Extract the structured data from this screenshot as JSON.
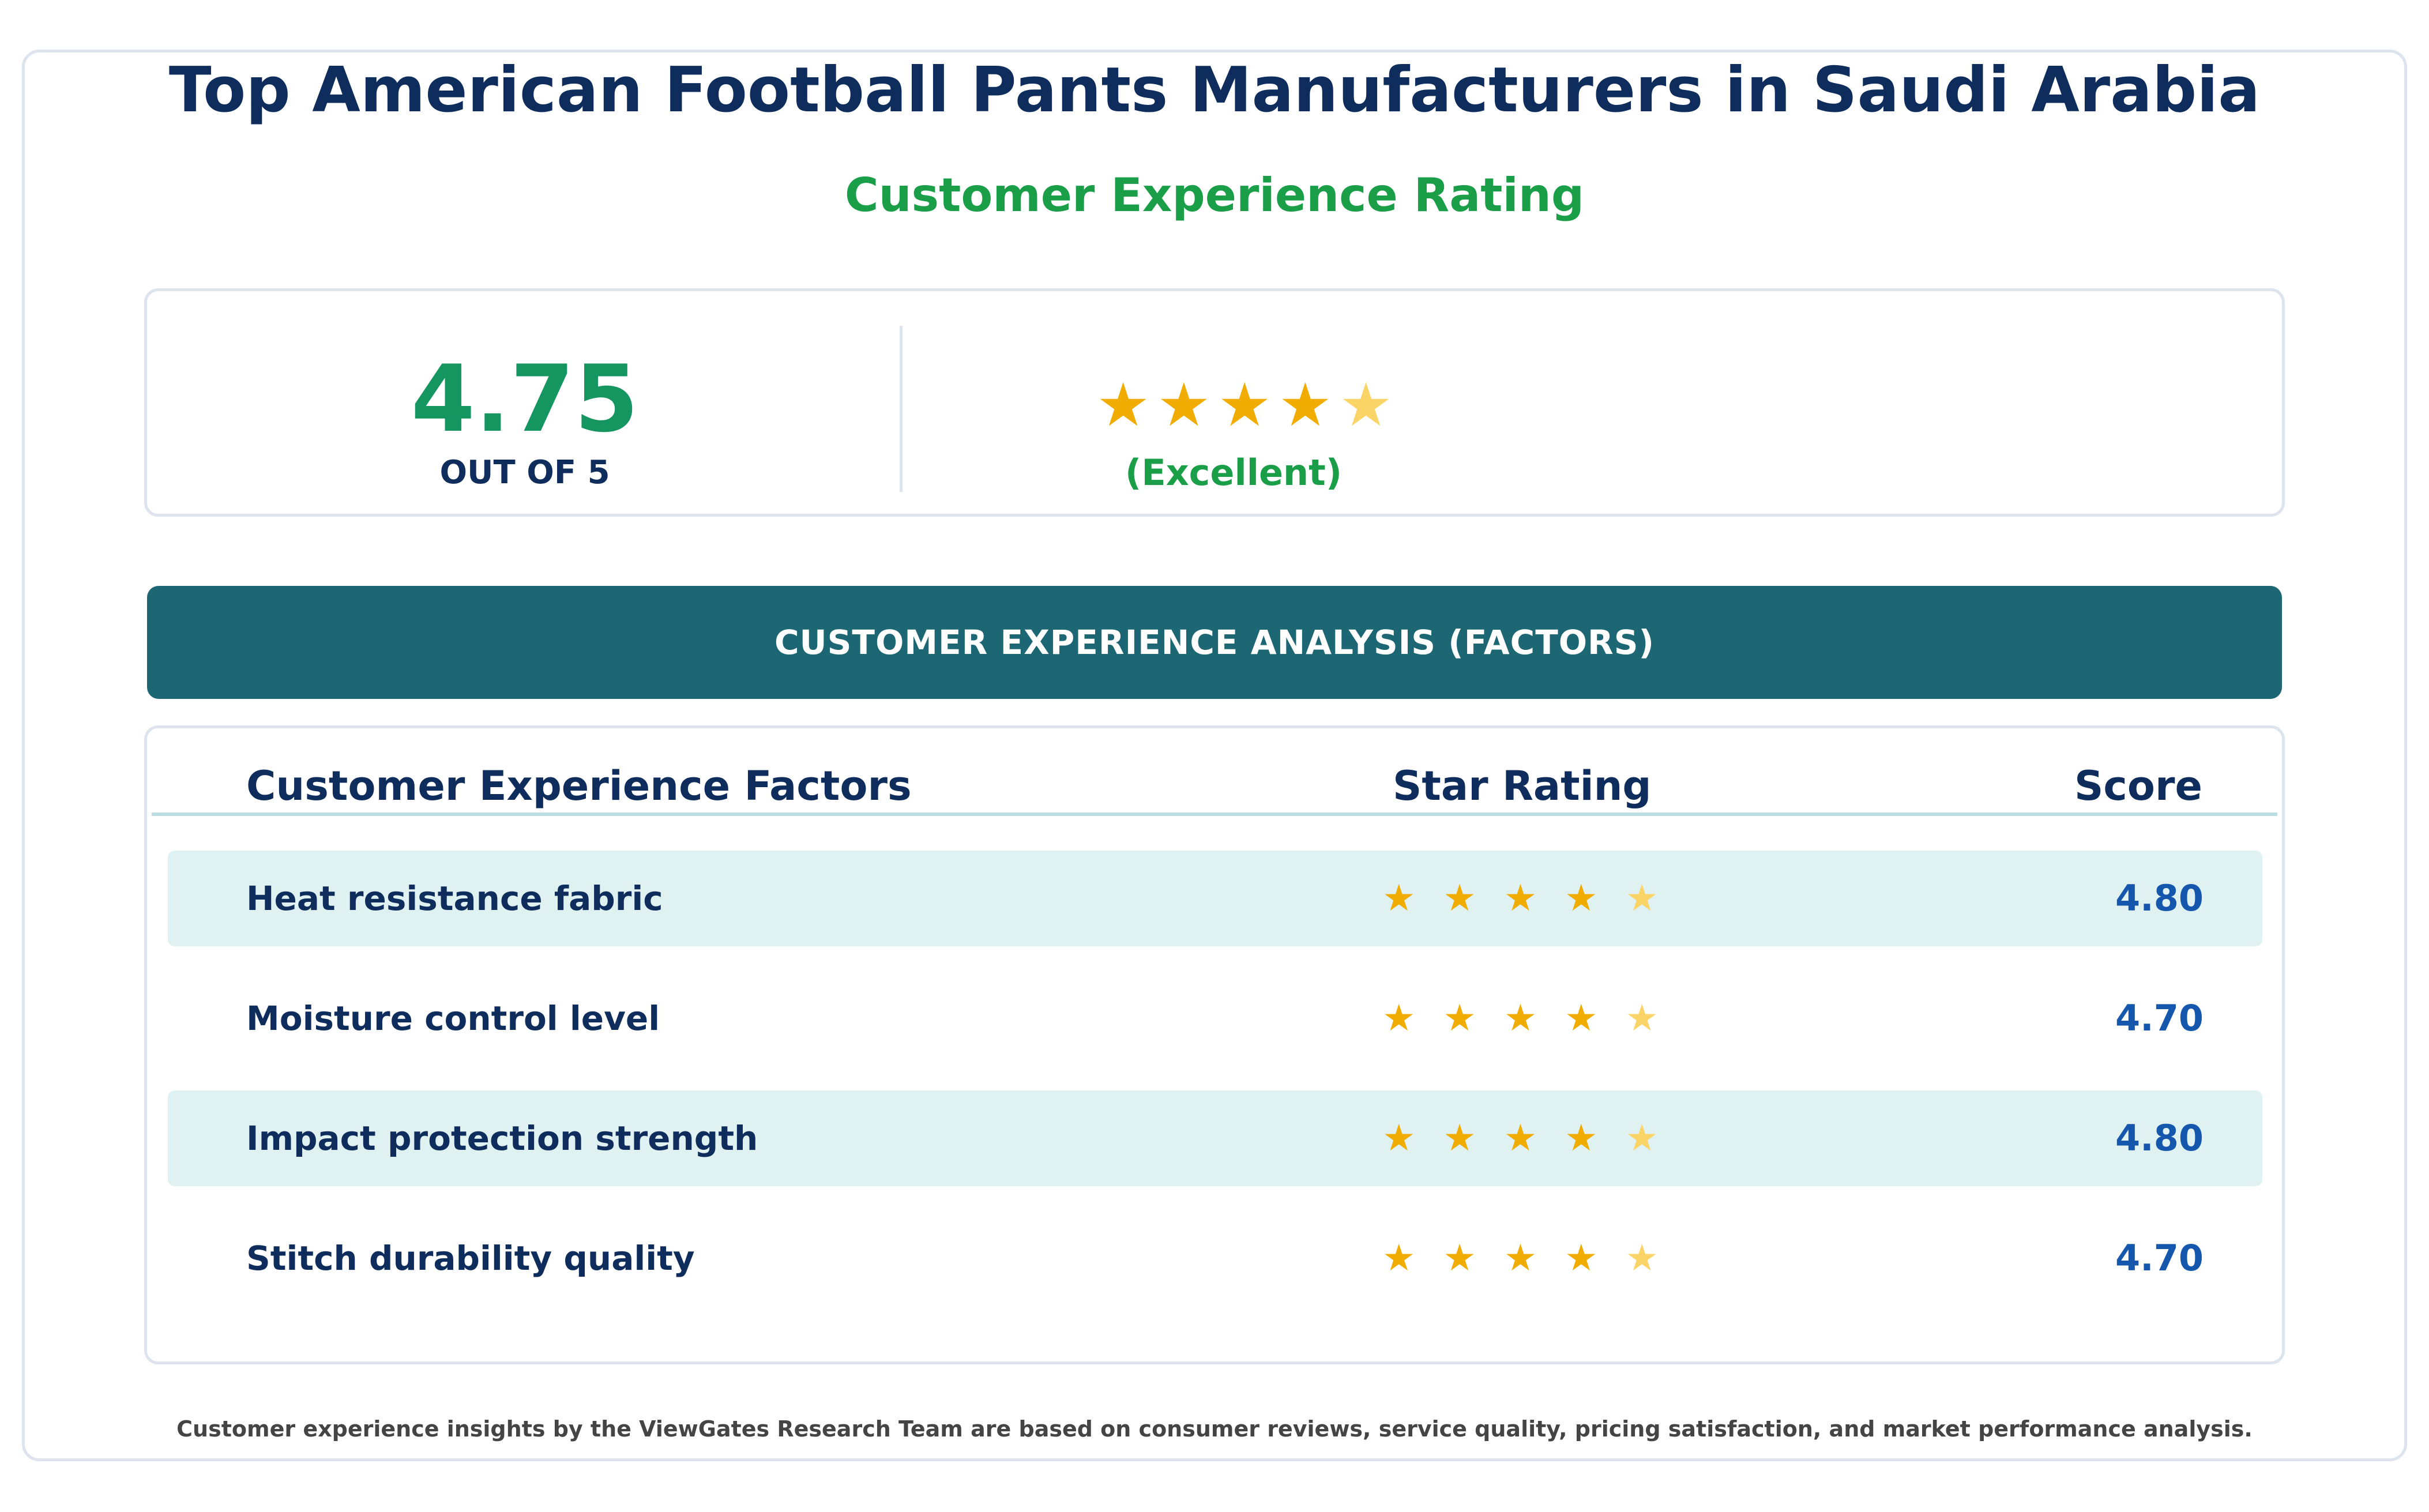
{
  "header": {
    "title": "Top American Football Pants Manufacturers in Saudi Arabia",
    "subtitle": "Customer Experience Rating"
  },
  "summary": {
    "score": "4.75",
    "scale_label": "OUT OF 5",
    "rating_label": "(Excellent)",
    "star_rating": 4.75,
    "stars": [
      {
        "symbol": "★",
        "icon": "star-full-icon"
      },
      {
        "symbol": "★",
        "icon": "star-full-icon"
      },
      {
        "symbol": "★",
        "icon": "star-full-icon"
      },
      {
        "symbol": "★",
        "icon": "star-full-icon"
      },
      {
        "symbol": "★",
        "icon": "star-partial-icon"
      }
    ]
  },
  "banner": {
    "label": "CUSTOMER EXPERIENCE ANALYSIS (FACTORS)"
  },
  "table": {
    "headers": {
      "factor": "Customer Experience Factors",
      "stars": "Star Rating",
      "score": "Score"
    },
    "rows": [
      {
        "factor": "Heat resistance fabric",
        "score": "4.80",
        "rating": 4.8,
        "shaded": true
      },
      {
        "factor": "Moisture control level",
        "score": "4.70",
        "rating": 4.7,
        "shaded": false
      },
      {
        "factor": "Impact protection strength",
        "score": "4.80",
        "rating": 4.8,
        "shaded": true
      },
      {
        "factor": "Stitch durability quality",
        "score": "4.70",
        "rating": 4.7,
        "shaded": false
      }
    ]
  },
  "footnote": "Customer experience insights by the ViewGates Research Team are based on consumer reviews, service quality, pricing satisfaction, and market performance analysis.",
  "colors": {
    "title": "#0f2d5c",
    "accent_green": "#1a9e48",
    "score_green": "#15955f",
    "banner": "#1d6775",
    "star_full": "#f0ac00",
    "star_partial": "#fbd468",
    "row_shade": "#e0f1f1",
    "score_blue": "#1457ad"
  }
}
